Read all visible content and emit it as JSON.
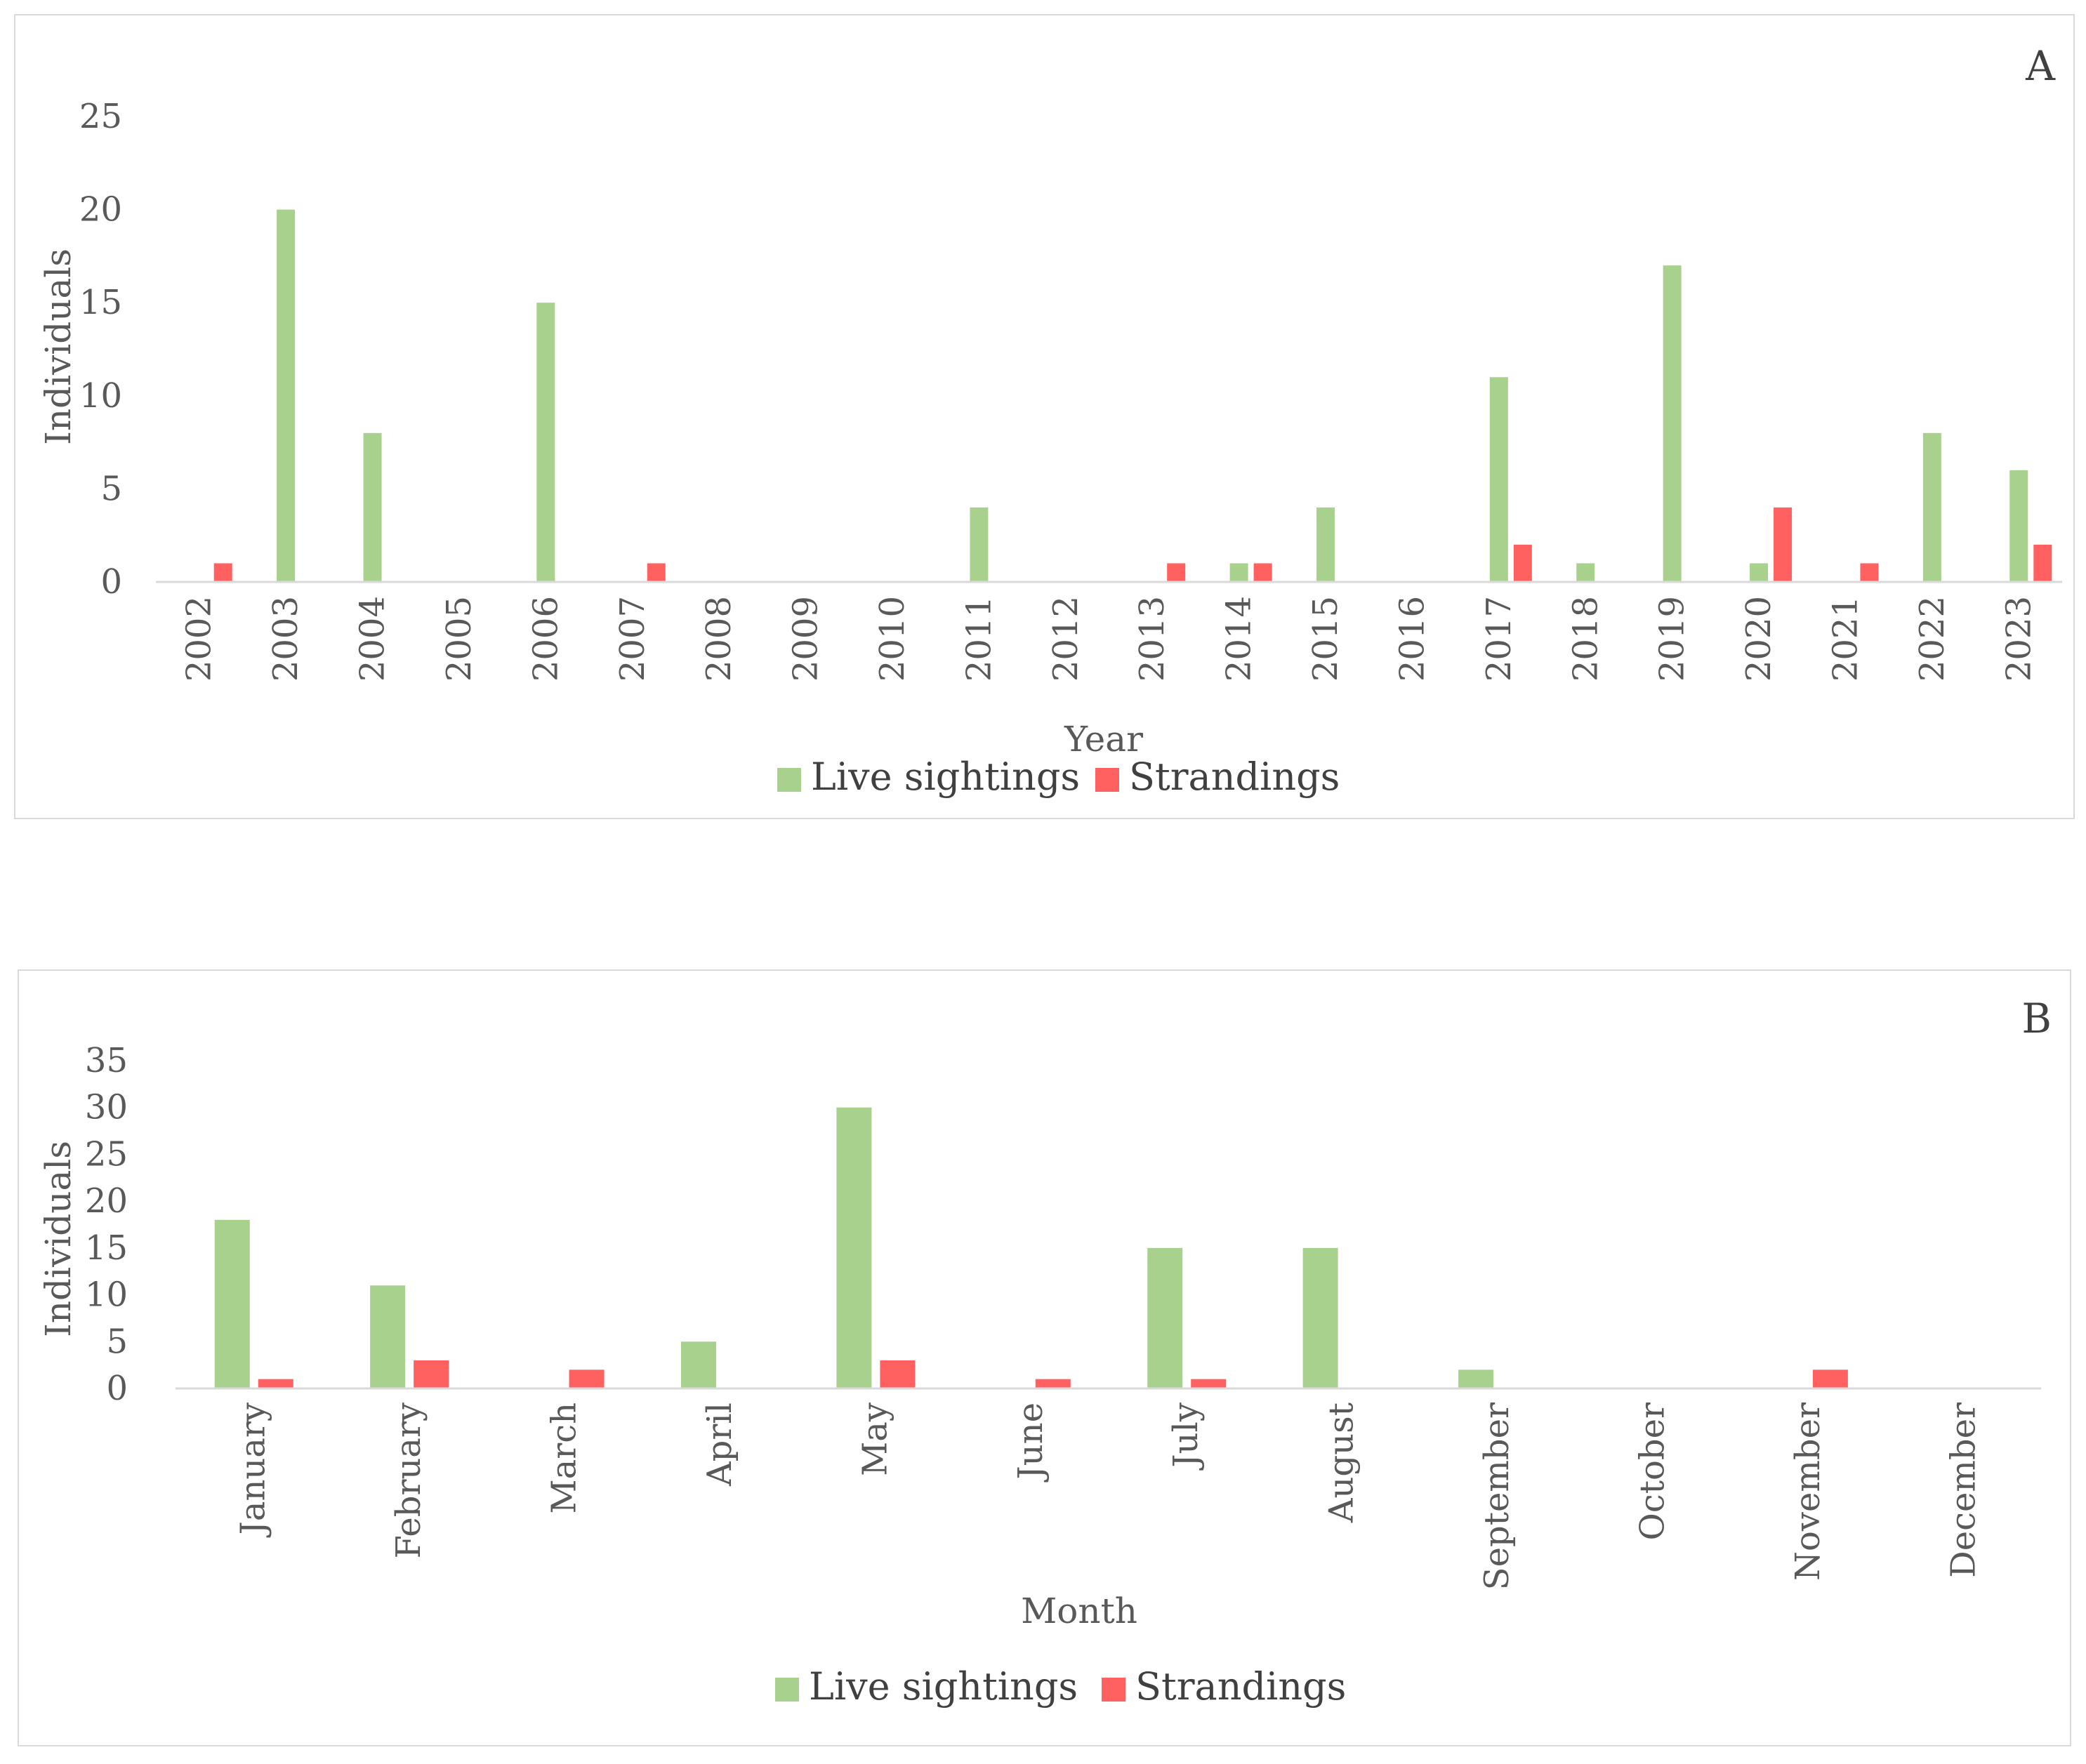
{
  "colors": {
    "live": "#a9d18e",
    "strand": "#ff6161",
    "axis": "#d9d9d9",
    "text": "#595959"
  },
  "chart_data": [
    {
      "type": "bar",
      "panel_label": "A",
      "xlabel": "Year",
      "ylabel": "Individuals",
      "ylim": [
        0,
        25
      ],
      "yticks": [
        0,
        5,
        10,
        15,
        20,
        25
      ],
      "categories": [
        "2002",
        "2003",
        "2004",
        "2005",
        "2006",
        "2007",
        "2008",
        "2009",
        "2010",
        "2011",
        "2012",
        "2013",
        "2014",
        "2015",
        "2016",
        "2017",
        "2018",
        "2019",
        "2020",
        "2021",
        "2022",
        "2023"
      ],
      "series": [
        {
          "name": "Live sightings",
          "values": [
            0,
            20,
            8,
            0,
            15,
            0,
            0,
            0,
            0,
            4,
            0,
            0,
            1,
            4,
            0,
            11,
            1,
            17,
            1,
            0,
            8,
            6
          ]
        },
        {
          "name": "Strandings",
          "values": [
            1,
            0,
            0,
            0,
            0,
            1,
            0,
            0,
            0,
            0,
            0,
            1,
            1,
            0,
            0,
            2,
            0,
            0,
            4,
            1,
            0,
            2
          ]
        }
      ],
      "legend": [
        "Live sightings",
        "Strandings"
      ],
      "legend_position": "bottom"
    },
    {
      "type": "bar",
      "panel_label": "B",
      "xlabel": "Month",
      "ylabel": "Individuals",
      "ylim": [
        0,
        35
      ],
      "yticks": [
        0,
        5,
        10,
        15,
        20,
        25,
        30,
        35
      ],
      "categories": [
        "January",
        "February",
        "March",
        "April",
        "May",
        "June",
        "July",
        "August",
        "September",
        "October",
        "November",
        "December"
      ],
      "series": [
        {
          "name": "Live sightings",
          "values": [
            18,
            11,
            0,
            5,
            30,
            0,
            15,
            15,
            2,
            0,
            0,
            0
          ]
        },
        {
          "name": "Strandings",
          "values": [
            1,
            3,
            2,
            0,
            3,
            1,
            1,
            0,
            0,
            0,
            2,
            0
          ]
        }
      ],
      "legend": [
        "Live sightings",
        "Strandings"
      ],
      "legend_position": "bottom"
    }
  ]
}
